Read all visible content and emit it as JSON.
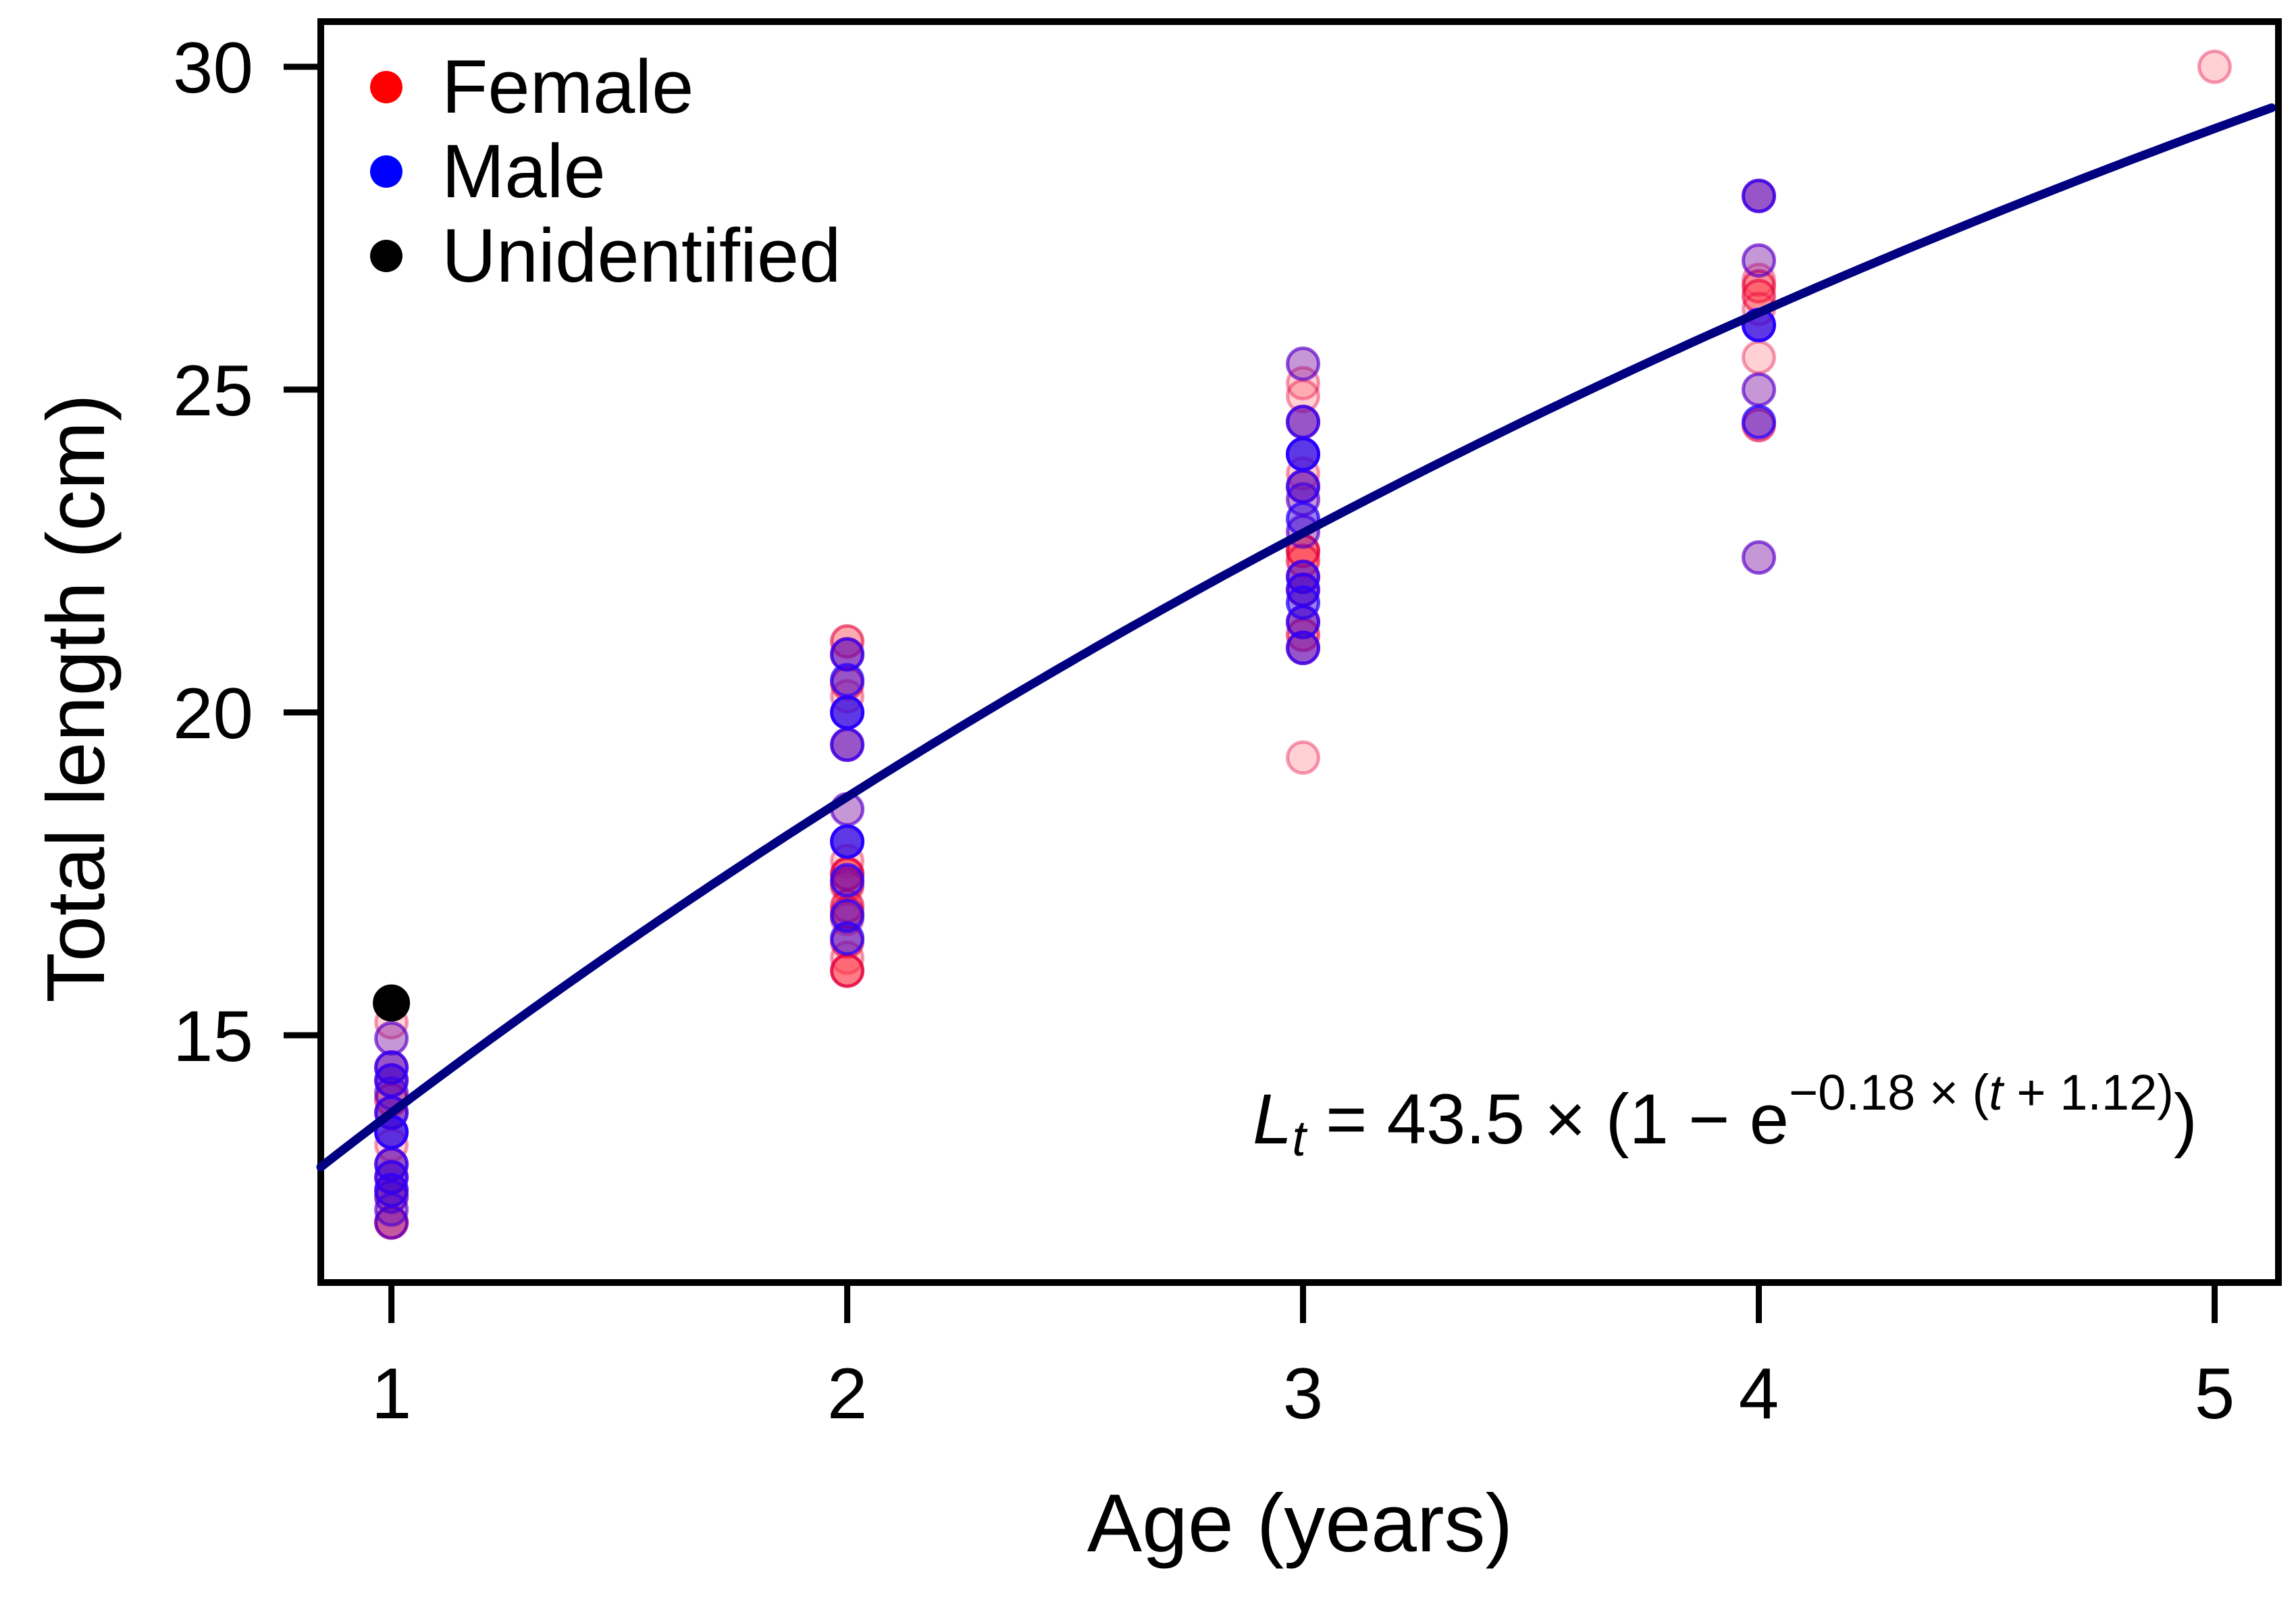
{
  "chart_data": {
    "type": "scatter",
    "title": "",
    "xlabel": "Age (years)",
    "ylabel": "Total length (cm)",
    "x_ticks": [
      1,
      2,
      3,
      4,
      5
    ],
    "y_ticks": [
      15,
      20,
      25,
      30
    ],
    "xlim": [
      0.845,
      5.14
    ],
    "ylim": [
      11.17,
      30.7
    ],
    "grid": false,
    "legend_position": "top-left",
    "legend": [
      {
        "label": "Female",
        "color": "#ff0000"
      },
      {
        "label": "Male",
        "color": "#0000ff"
      },
      {
        "label": "Unidentified",
        "color": "#000000"
      }
    ],
    "curve": {
      "name": "von Bertalanffy growth curve",
      "Linf": 43.5,
      "k": 0.18,
      "t0": -1.12,
      "color": "#000080",
      "width": 13,
      "domain": [
        0.845,
        5.14
      ]
    },
    "equation": {
      "lhs": "L",
      "lhs_sub": "t",
      "mid": " = 43.5 × (1 − e",
      "sup_pre": "−0.18 × (",
      "sup_var": "t",
      "sup_post": " + 1.12)",
      "close": ")"
    },
    "series": [
      {
        "name": "Female",
        "fill": "#ff2a3c",
        "ring": "#e4003c",
        "boost": 1,
        "points": [
          {
            "x": 1,
            "y": 15.2,
            "shade": "light"
          },
          {
            "x": 1,
            "y": 14.95,
            "shade": "light"
          },
          {
            "x": 1,
            "y": 14.5,
            "shade": "normal"
          },
          {
            "x": 1,
            "y": 14.3,
            "shade": "normal"
          },
          {
            "x": 1,
            "y": 14.1,
            "shade": "light"
          },
          {
            "x": 1,
            "y": 14.0,
            "shade": "normal"
          },
          {
            "x": 1,
            "y": 13.8,
            "shade": "normal"
          },
          {
            "x": 1,
            "y": 13.3,
            "shade": "light"
          },
          {
            "x": 1,
            "y": 13.0,
            "shade": "normal"
          },
          {
            "x": 1,
            "y": 12.8,
            "shade": "normal"
          },
          {
            "x": 1,
            "y": 12.6,
            "shade": "normal"
          },
          {
            "x": 1,
            "y": 12.5,
            "shade": "normal"
          },
          {
            "x": 1,
            "y": 12.3,
            "shade": "light"
          },
          {
            "x": 1,
            "y": 12.1,
            "shade": "vivid"
          },
          {
            "x": 2,
            "y": 21.1,
            "shade": "normal"
          },
          {
            "x": 2,
            "y": 20.9,
            "shade": "normal"
          },
          {
            "x": 2,
            "y": 20.45,
            "shade": "normal"
          },
          {
            "x": 2,
            "y": 20.25,
            "shade": "light"
          },
          {
            "x": 2,
            "y": 19.5,
            "shade": "normal"
          },
          {
            "x": 2,
            "y": 18.5,
            "shade": "light"
          },
          {
            "x": 2,
            "y": 17.7,
            "shade": "light"
          },
          {
            "x": 2,
            "y": 17.5,
            "shade": "vivid"
          },
          {
            "x": 2,
            "y": 17.35,
            "shade": "normal"
          },
          {
            "x": 2,
            "y": 17.3,
            "shade": "light"
          },
          {
            "x": 2,
            "y": 17.0,
            "shade": "normal"
          },
          {
            "x": 2,
            "y": 16.9,
            "shade": "normal"
          },
          {
            "x": 2,
            "y": 16.8,
            "shade": "light"
          },
          {
            "x": 2,
            "y": 16.45,
            "shade": "normal"
          },
          {
            "x": 2,
            "y": 16.2,
            "shade": "light"
          },
          {
            "x": 2,
            "y": 16.0,
            "shade": "vivid"
          },
          {
            "x": 3,
            "y": 25.4,
            "shade": "light"
          },
          {
            "x": 3,
            "y": 25.1,
            "shade": "light"
          },
          {
            "x": 3,
            "y": 24.9,
            "shade": "light"
          },
          {
            "x": 3,
            "y": 24.5,
            "shade": "normal"
          },
          {
            "x": 3,
            "y": 23.7,
            "shade": "light"
          },
          {
            "x": 3,
            "y": 23.5,
            "shade": "normal"
          },
          {
            "x": 3,
            "y": 23.3,
            "shade": "light"
          },
          {
            "x": 3,
            "y": 22.8,
            "shade": "light"
          },
          {
            "x": 3,
            "y": 22.5,
            "shade": "vivid"
          },
          {
            "x": 3,
            "y": 22.35,
            "shade": "normal"
          },
          {
            "x": 3,
            "y": 22.1,
            "shade": "normal"
          },
          {
            "x": 3,
            "y": 21.9,
            "shade": "normal"
          },
          {
            "x": 3,
            "y": 21.4,
            "shade": "normal"
          },
          {
            "x": 3,
            "y": 21.2,
            "shade": "normal"
          },
          {
            "x": 3,
            "y": 21.0,
            "shade": "normal"
          },
          {
            "x": 3,
            "y": 19.3,
            "shade": "light"
          },
          {
            "x": 4,
            "y": 28.0,
            "shade": "normal"
          },
          {
            "x": 4,
            "y": 27.0,
            "shade": "light"
          },
          {
            "x": 4,
            "y": 26.7,
            "shade": "light"
          },
          {
            "x": 4,
            "y": 26.6,
            "shade": "normal"
          },
          {
            "x": 4,
            "y": 26.45,
            "shade": "normal"
          },
          {
            "x": 4,
            "y": 26.25,
            "shade": "light"
          },
          {
            "x": 4,
            "y": 25.5,
            "shade": "light"
          },
          {
            "x": 4,
            "y": 25.0,
            "shade": "light"
          },
          {
            "x": 4,
            "y": 24.45,
            "shade": "normal"
          },
          {
            "x": 4,
            "y": 22.4,
            "shade": "light"
          },
          {
            "x": 5,
            "y": 30.0,
            "shade": "light"
          }
        ]
      },
      {
        "name": "Male",
        "fill": "#2f00dd",
        "ring": "#2a00ff",
        "boost": 1.25,
        "points": [
          {
            "x": 1,
            "y": 14.95,
            "shade": "light"
          },
          {
            "x": 1,
            "y": 14.5,
            "shade": "normal"
          },
          {
            "x": 1,
            "y": 14.3,
            "shade": "normal"
          },
          {
            "x": 1,
            "y": 14.1,
            "shade": "light"
          },
          {
            "x": 1,
            "y": 13.8,
            "shade": "normal"
          },
          {
            "x": 1,
            "y": 13.5,
            "shade": "vivid"
          },
          {
            "x": 1,
            "y": 13.0,
            "shade": "normal"
          },
          {
            "x": 1,
            "y": 12.8,
            "shade": "normal"
          },
          {
            "x": 1,
            "y": 12.6,
            "shade": "normal"
          },
          {
            "x": 1,
            "y": 12.5,
            "shade": "light"
          },
          {
            "x": 1,
            "y": 12.3,
            "shade": "light"
          },
          {
            "x": 1,
            "y": 12.1,
            "shade": "light"
          },
          {
            "x": 2,
            "y": 20.9,
            "shade": "normal"
          },
          {
            "x": 2,
            "y": 20.5,
            "shade": "normal"
          },
          {
            "x": 2,
            "y": 20.0,
            "shade": "vivid"
          },
          {
            "x": 2,
            "y": 19.5,
            "shade": "normal"
          },
          {
            "x": 2,
            "y": 18.5,
            "shade": "light"
          },
          {
            "x": 2,
            "y": 18.0,
            "shade": "vivid"
          },
          {
            "x": 2,
            "y": 17.4,
            "shade": "normal"
          },
          {
            "x": 2,
            "y": 16.85,
            "shade": "normal"
          },
          {
            "x": 2,
            "y": 16.5,
            "shade": "normal"
          },
          {
            "x": 3,
            "y": 25.4,
            "shade": "light"
          },
          {
            "x": 3,
            "y": 24.5,
            "shade": "normal"
          },
          {
            "x": 3,
            "y": 24.0,
            "shade": "vivid"
          },
          {
            "x": 3,
            "y": 23.5,
            "shade": "normal"
          },
          {
            "x": 3,
            "y": 23.3,
            "shade": "light"
          },
          {
            "x": 3,
            "y": 23.0,
            "shade": "normal"
          },
          {
            "x": 3,
            "y": 22.8,
            "shade": "light"
          },
          {
            "x": 3,
            "y": 22.1,
            "shade": "normal"
          },
          {
            "x": 3,
            "y": 21.9,
            "shade": "normal"
          },
          {
            "x": 3,
            "y": 21.7,
            "shade": "normal"
          },
          {
            "x": 3,
            "y": 21.4,
            "shade": "normal"
          },
          {
            "x": 3,
            "y": 21.0,
            "shade": "normal"
          },
          {
            "x": 4,
            "y": 28.0,
            "shade": "normal"
          },
          {
            "x": 4,
            "y": 27.0,
            "shade": "light"
          },
          {
            "x": 4,
            "y": 26.0,
            "shade": "vivid"
          },
          {
            "x": 4,
            "y": 25.0,
            "shade": "light"
          },
          {
            "x": 4,
            "y": 24.5,
            "shade": "normal"
          },
          {
            "x": 4,
            "y": 22.4,
            "shade": "light"
          }
        ]
      },
      {
        "name": "Unidentified",
        "fill": "#000000",
        "ring": "#000000",
        "boost": 1,
        "points": [
          {
            "x": 1,
            "y": 15.5,
            "shade": "opaque"
          }
        ]
      }
    ]
  }
}
